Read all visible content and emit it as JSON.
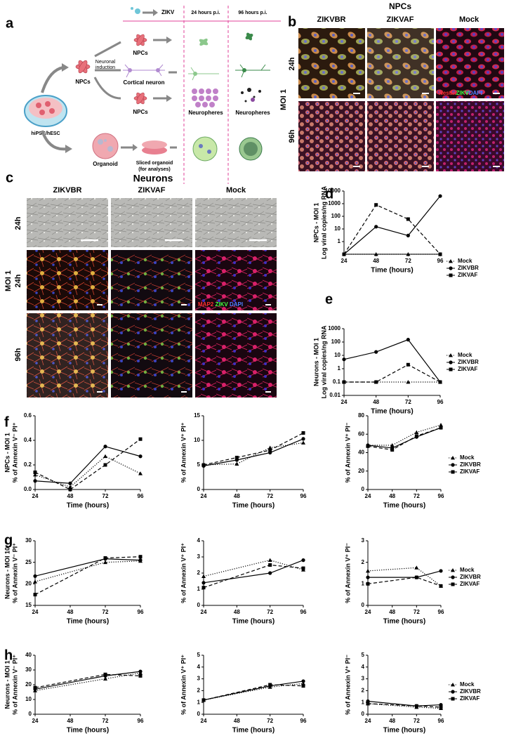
{
  "panel_a": {
    "label": "a",
    "virus": "ZIKV",
    "time_1": "24 hours p.i.",
    "time_2": "96 hours p.i.",
    "source": "hiPSC/hESC",
    "npcs_1": "NPCs",
    "induction": [
      "Neuronal",
      "induction"
    ],
    "neuron": "Cortical neuron",
    "npcs_2": "NPCs",
    "npcs_3": "NPCs",
    "neurospheres_24": "Neuropheres",
    "neurospheres_96": "Neuropheres",
    "organoid": "Organoid",
    "sliced": "Sliced organoid",
    "sliced_note": "(for analyses)"
  },
  "panel_b": {
    "label": "b",
    "title": "NPCs",
    "columns": [
      "ZIKVBR",
      "ZIKVAF",
      "Mock"
    ],
    "rows": [
      "24h",
      "96h"
    ],
    "moi": "MOI 1",
    "stains": [
      "Nestin",
      "ZIKV",
      "DAPI"
    ]
  },
  "panel_c": {
    "label": "c",
    "title": "Neurons",
    "columns": [
      "ZIKVBR",
      "ZIKVAF",
      "Mock"
    ],
    "rows": [
      "24h",
      "24h",
      "96h"
    ],
    "moi": "MOI 1",
    "stains": [
      "MAP2",
      "ZIKV",
      "DAPI"
    ]
  },
  "panel_labels": [
    "d",
    "e",
    "f",
    "g",
    "h"
  ],
  "chart_data": [
    {
      "type": "line",
      "group_label": "NPCs - MOI 1",
      "ylabel": "Log viral copies/ng RNA",
      "xlabel": "Time (hours)",
      "log_y": true,
      "legend": "right",
      "x": [
        24,
        48,
        72,
        96
      ],
      "xlim": [
        24,
        96
      ],
      "xticks": [
        24,
        48,
        72,
        96
      ],
      "ylim": [
        0.1,
        10000
      ],
      "yticks": [
        1,
        10,
        100,
        1000,
        10000
      ],
      "series": [
        {
          "name": "Mock",
          "color": "#000000",
          "marker": "triangle",
          "dash": "dotted",
          "values": [
            0.1,
            0.1,
            0.1,
            0.1
          ]
        },
        {
          "name": "ZIKVBR",
          "color": "#000000",
          "marker": "circle",
          "dash": "solid",
          "values": [
            0.1,
            15,
            3,
            4000
          ]
        },
        {
          "name": "ZIKVAF",
          "color": "#000000",
          "marker": "square",
          "dash": "dashed",
          "values": [
            0.1,
            800,
            60,
            0.1
          ]
        }
      ]
    },
    {
      "type": "line",
      "group_label": "Neurons - MOI 1",
      "ylabel": "Log viral copies/ng RNA",
      "xlabel": "Time (hours)",
      "log_y": true,
      "legend": "right",
      "x": [
        24,
        48,
        72,
        96
      ],
      "xlim": [
        24,
        96
      ],
      "xticks": [
        24,
        48,
        72,
        96
      ],
      "ylim": [
        0.01,
        1000
      ],
      "yticks": [
        0.01,
        0.1,
        1,
        10,
        100,
        1000
      ],
      "series": [
        {
          "name": "Mock",
          "color": "#000000",
          "marker": "triangle",
          "dash": "dotted",
          "values": [
            0.1,
            0.1,
            0.1,
            0.1
          ]
        },
        {
          "name": "ZIKVBR",
          "color": "#000000",
          "marker": "circle",
          "dash": "solid",
          "values": [
            5,
            18,
            150,
            0.1
          ]
        },
        {
          "name": "ZIKVAF",
          "color": "#000000",
          "marker": "square",
          "dash": "dashed",
          "values": [
            0.1,
            0.1,
            2,
            0.1
          ]
        }
      ]
    },
    {
      "type": "line",
      "group_label": "NPCs - MOI 1",
      "ylabel": "% of Annexin V⁻ PI⁺",
      "xlabel": "Time (hours)",
      "x": [
        24,
        48,
        72,
        96
      ],
      "xlim": [
        24,
        96
      ],
      "xticks": [
        24,
        48,
        72,
        96
      ],
      "ylim": [
        0,
        0.6
      ],
      "yticks": [
        {
          "value": 0,
          "label": "0.0"
        },
        0.2,
        0.4,
        0.6
      ],
      "series": [
        {
          "color": "#000000",
          "marker": "triangle",
          "dash": "dotted",
          "values": [
            0.12,
            0.02,
            0.27,
            0.13
          ]
        },
        {
          "color": "#000000",
          "marker": "circle",
          "dash": "solid",
          "values": [
            0.07,
            0.05,
            0.35,
            0.27
          ]
        },
        {
          "color": "#000000",
          "marker": "square",
          "dash": "dashed",
          "values": [
            0.14,
            0.0,
            0.2,
            0.41
          ]
        }
      ]
    },
    {
      "type": "line",
      "ylabel": "% of Annexin V⁺ PI⁺",
      "xlabel": "Time (hours)",
      "x": [
        24,
        48,
        72,
        96
      ],
      "xlim": [
        24,
        96
      ],
      "xticks": [
        24,
        48,
        72,
        96
      ],
      "ylim": [
        0,
        15
      ],
      "yticks": [
        0,
        5,
        10,
        15
      ],
      "series": [
        {
          "color": "#000000",
          "marker": "triangle",
          "dash": "dotted",
          "values": [
            5,
            5.2,
            8.5,
            9.5
          ]
        },
        {
          "color": "#000000",
          "marker": "circle",
          "dash": "solid",
          "values": [
            4.8,
            6,
            7.5,
            10.3
          ]
        },
        {
          "color": "#000000",
          "marker": "square",
          "dash": "dashed",
          "values": [
            5,
            6.5,
            8,
            11.5
          ]
        }
      ]
    },
    {
      "type": "line",
      "ylabel": "% of Annexin V⁺ PI⁻",
      "xlabel": "Time (hours)",
      "legend": "right",
      "x": [
        24,
        48,
        72,
        96
      ],
      "xlim": [
        24,
        96
      ],
      "xticks": [
        24,
        48,
        72,
        96
      ],
      "ylim": [
        0,
        80
      ],
      "yticks": [
        0,
        20,
        40,
        60,
        80
      ],
      "series": [
        {
          "name": "Mock",
          "color": "#000000",
          "marker": "triangle",
          "dash": "dotted",
          "values": [
            48,
            48,
            62,
            70
          ]
        },
        {
          "name": "ZIKVBR",
          "color": "#000000",
          "marker": "circle",
          "dash": "solid",
          "values": [
            48,
            45,
            57,
            67
          ]
        },
        {
          "name": "ZIKVAF",
          "color": "#000000",
          "marker": "square",
          "dash": "dashed",
          "values": [
            47,
            43,
            58,
            67
          ]
        }
      ]
    },
    {
      "type": "line",
      "group_label": "Neurons - MOI 10",
      "ylabel": "% of Annexin V⁻ PI⁺",
      "xlabel": "Time (hours)",
      "x": [
        24,
        72,
        96
      ],
      "xlim": [
        24,
        96
      ],
      "xticks": [
        24,
        48,
        72,
        96
      ],
      "ylim": [
        15,
        30
      ],
      "yticks": [
        15,
        20,
        25,
        30
      ],
      "series": [
        {
          "color": "#000000",
          "marker": "triangle",
          "dash": "dotted",
          "values": [
            20.5,
            25,
            25.3
          ]
        },
        {
          "color": "#000000",
          "marker": "circle",
          "dash": "solid",
          "values": [
            21.8,
            25.8,
            25.5
          ]
        },
        {
          "color": "#000000",
          "marker": "square",
          "dash": "dashed",
          "values": [
            17.5,
            26,
            26.3
          ]
        }
      ]
    },
    {
      "type": "line",
      "ylabel": "% of Annexin V⁺ PI⁺",
      "xlabel": "Time (hours)",
      "x": [
        24,
        72,
        96
      ],
      "xlim": [
        24,
        96
      ],
      "xticks": [
        24,
        48,
        72,
        96
      ],
      "ylim": [
        0,
        4
      ],
      "yticks": [
        0,
        1,
        2,
        3,
        4
      ],
      "series": [
        {
          "color": "#000000",
          "marker": "triangle",
          "dash": "dotted",
          "values": [
            1.8,
            2.8,
            2.2
          ]
        },
        {
          "color": "#000000",
          "marker": "circle",
          "dash": "solid",
          "values": [
            1.4,
            2,
            2.8
          ]
        },
        {
          "color": "#000000",
          "marker": "square",
          "dash": "dashed",
          "values": [
            1.1,
            2.5,
            2.3
          ]
        }
      ]
    },
    {
      "type": "line",
      "ylabel": "% of Annexin V⁺ PI⁻",
      "xlabel": "Time (hours)",
      "legend": "right",
      "x": [
        24,
        72,
        96
      ],
      "xlim": [
        24,
        96
      ],
      "xticks": [
        24,
        48,
        72,
        96
      ],
      "ylim": [
        0,
        3
      ],
      "yticks": [
        0,
        1,
        2,
        3
      ],
      "series": [
        {
          "name": "Mock",
          "color": "#000000",
          "marker": "triangle",
          "dash": "dotted",
          "values": [
            1.6,
            1.75,
            0.9
          ]
        },
        {
          "name": "ZIKVBR",
          "color": "#000000",
          "marker": "circle",
          "dash": "solid",
          "values": [
            1.3,
            1.3,
            1.6
          ]
        },
        {
          "name": "ZIKVAF",
          "color": "#000000",
          "marker": "square",
          "dash": "dashed",
          "values": [
            1.0,
            1.3,
            0.9
          ]
        }
      ]
    },
    {
      "type": "line",
      "group_label": "Neurons - MOI 1",
      "ylabel": "% of Annexin V⁻ PI⁺",
      "xlabel": "Time (hours)",
      "x": [
        24,
        72,
        96
      ],
      "xlim": [
        24,
        96
      ],
      "xticks": [
        24,
        48,
        72,
        96
      ],
      "ylim": [
        0,
        40
      ],
      "yticks": [
        0,
        10,
        20,
        30,
        40
      ],
      "series": [
        {
          "color": "#000000",
          "marker": "triangle",
          "dash": "dotted",
          "values": [
            16,
            24,
            28
          ]
        },
        {
          "color": "#000000",
          "marker": "circle",
          "dash": "solid",
          "values": [
            17,
            26,
            29
          ]
        },
        {
          "color": "#000000",
          "marker": "square",
          "dash": "dashed",
          "values": [
            18,
            27,
            26
          ]
        }
      ]
    },
    {
      "type": "line",
      "ylabel": "% of Annexin V⁺ PI⁺",
      "xlabel": "Time (hours)",
      "x": [
        24,
        72,
        96
      ],
      "xlim": [
        24,
        96
      ],
      "xticks": [
        24,
        48,
        72,
        96
      ],
      "ylim": [
        0,
        5
      ],
      "yticks": [
        0,
        1,
        2,
        3,
        4,
        5
      ],
      "series": [
        {
          "color": "#000000",
          "marker": "triangle",
          "dash": "dotted",
          "values": [
            1.2,
            2.3,
            2.6
          ]
        },
        {
          "color": "#000000",
          "marker": "circle",
          "dash": "solid",
          "values": [
            1.2,
            2.4,
            2.8
          ]
        },
        {
          "color": "#000000",
          "marker": "square",
          "dash": "dashed",
          "values": [
            1.2,
            2.5,
            2.4
          ]
        }
      ]
    },
    {
      "type": "line",
      "ylabel": "% of Annexin V⁺ PI⁻",
      "xlabel": "Time (hours)",
      "legend": "right",
      "x": [
        24,
        72,
        96
      ],
      "xlim": [
        24,
        96
      ],
      "xticks": [
        24,
        48,
        72,
        96
      ],
      "ylim": [
        0,
        5
      ],
      "yticks": [
        0,
        1,
        2,
        3,
        4,
        5
      ],
      "series": [
        {
          "name": "Mock",
          "color": "#000000",
          "marker": "triangle",
          "dash": "dotted",
          "values": [
            0.9,
            0.6,
            0.5
          ]
        },
        {
          "name": "ZIKVBR",
          "color": "#000000",
          "marker": "circle",
          "dash": "solid",
          "values": [
            1.1,
            0.7,
            0.8
          ]
        },
        {
          "name": "ZIKVAF",
          "color": "#000000",
          "marker": "square",
          "dash": "dashed",
          "values": [
            0.9,
            0.7,
            0.6
          ]
        }
      ]
    }
  ]
}
